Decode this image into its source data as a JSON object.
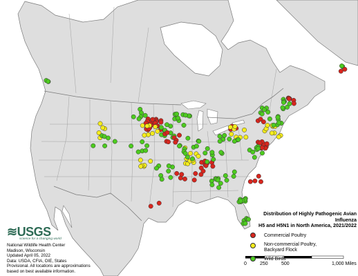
{
  "legend": {
    "title_line1": "Distribution of Highly Pathogenic Avian Influenza",
    "title_line2": "H5 and H5N1 in North America, 2021/2022",
    "items": [
      {
        "label_line1": "Commercial Poultry",
        "label_line2": "",
        "color": "#d7261e"
      },
      {
        "label_line1": "Non-commercial Poultry,",
        "label_line2": "Backyard Flock",
        "color": "#f5ec1c"
      },
      {
        "label_line1": "Wild Birds",
        "label_line2": "",
        "color": "#4dcb1f"
      }
    ]
  },
  "scale_bar": {
    "labels": [
      "0",
      "250",
      "500",
      "1,000 Miles"
    ]
  },
  "logo": {
    "name": "USGS",
    "tagline": "science for a changing world"
  },
  "credit": [
    "National Wildlife Health Center",
    "Madison, Wisconsin",
    "Updated April 05, 2022",
    "Data: USDA, CFIA, OIE, States",
    "Provisional. All locations are approximations",
    "based on best available information."
  ],
  "colors": {
    "land": "#dedede",
    "water": "#ffffff",
    "border": "#7a7a7a"
  }
}
